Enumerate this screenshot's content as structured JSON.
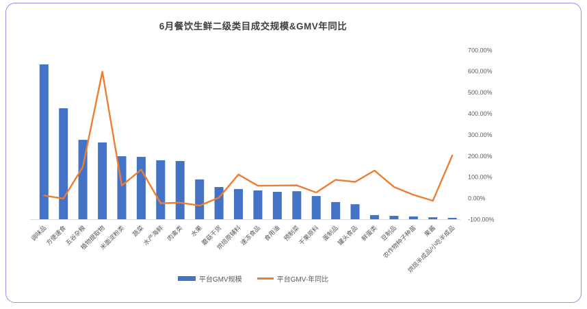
{
  "card": {
    "border_color": "#a18be4",
    "background": "#ffffff"
  },
  "chart_data": {
    "type": "combo-bar-line",
    "title": "6月餐饮生鲜二级类目成交规模&GMV年同比",
    "categories": [
      "调味品",
      "方便速食",
      "五谷杂粮",
      "植物提取物",
      "米面淀粉类",
      "蔬菜",
      "水产海鲜",
      "肉禽类",
      "水果",
      "蘑菇干货",
      "烘焙原辅料",
      "速冻食品",
      "食用油",
      "预制菜",
      "干果原料",
      "蛋制品",
      "罐头食品",
      "鲜蛋类",
      "豆制品",
      "农作物种子种苗",
      "果酱",
      "烘焙半成品/小吃半成品"
    ],
    "series": [
      {
        "name": "平台GMV规模",
        "type": "bar",
        "color": "#4472c4",
        "axis": "left",
        "values_relative": [
          100,
          71.7,
          51.3,
          49.6,
          40.7,
          40.3,
          38.1,
          37.6,
          25.7,
          20.8,
          19.5,
          18.6,
          17.7,
          18.1,
          15.0,
          11.1,
          9.7,
          2.7,
          2.2,
          1.8,
          1.3,
          0.9
        ]
      },
      {
        "name": "平台GMV-年同比",
        "type": "line",
        "color": "#ed7d31",
        "axis": "right",
        "values_percent": [
          13,
          -2,
          148,
          598,
          60,
          135,
          -24,
          -21,
          -35,
          3,
          112,
          59,
          60,
          61,
          27,
          87,
          77,
          131,
          53,
          16,
          -12,
          202
        ]
      }
    ],
    "right_axis": {
      "ticks": [
        "700.00%",
        "600.00%",
        "500.00%",
        "400.00%",
        "300.00%",
        "200.00%",
        "100.00%",
        "0.00%",
        "-100.00%"
      ],
      "max": 700,
      "min": -100
    },
    "left_axis": {
      "visible": false
    },
    "grid": false,
    "legend_position": "bottom",
    "colors": {
      "bar": "#4472c4",
      "line": "#ed7d31",
      "axis_text": "#595959",
      "axis_line": "#d9d9d9",
      "title": "#404040"
    }
  }
}
